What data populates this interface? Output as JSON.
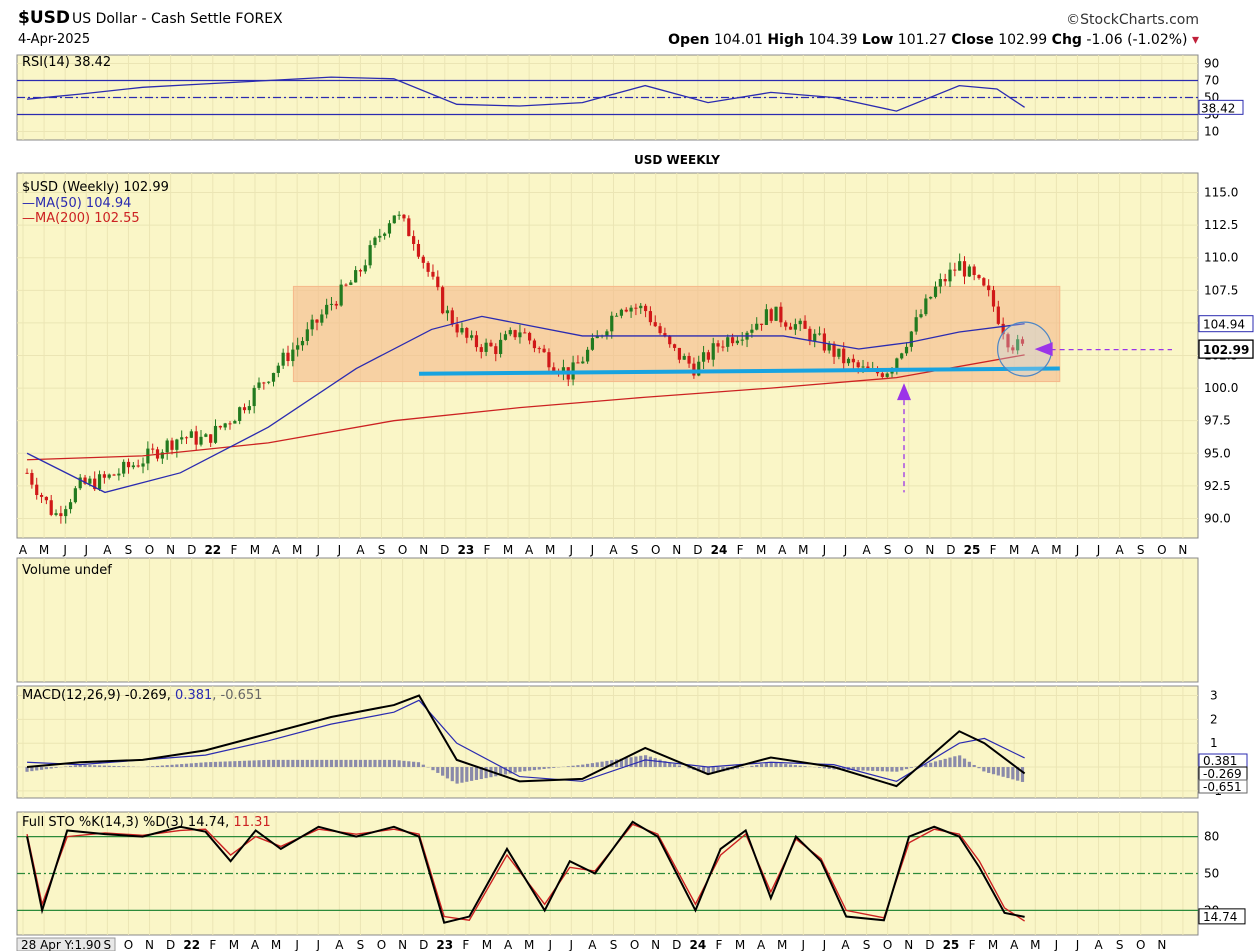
{
  "header": {
    "symbol": "$USD",
    "description": "US Dollar - Cash Settle FOREX",
    "date": "4-Apr-2025",
    "brand": "©StockCharts.com",
    "open_label": "Open",
    "open": "104.01",
    "high_label": "High",
    "high": "104.39",
    "low_label": "Low",
    "low": "101.27",
    "close_label": "Close",
    "close": "102.99",
    "chg_label": "Chg",
    "chg": "-1.06 (-1.02%)",
    "chg_arrow": "▾"
  },
  "colors": {
    "plot_bg": "#faf6c7",
    "grid": "#ebe5b4",
    "border": "#888888",
    "range_box": "#f5b98a",
    "support_line": "#18a3e0",
    "annotation": "#9b34e8",
    "up": "#227a1f",
    "down": "#d01818",
    "ma50": "#2b2bb0",
    "ma200": "#cc2222",
    "hist": "#8a8aaa"
  },
  "annotation": {
    "text": "USD WEEKLY"
  },
  "chart_data": [
    {
      "type": "line",
      "panel": "RSI",
      "legend": "RSI(14) 38.42",
      "ylim": [
        0,
        100
      ],
      "ticks": [
        "90",
        "70",
        "50",
        "30",
        "10"
      ],
      "levels": [
        70,
        50,
        30
      ],
      "last_value_label": "38.42",
      "x": [
        2021.29,
        2021.5,
        2021.75,
        2022.0,
        2022.25,
        2022.5,
        2022.75,
        2023.0,
        2023.25,
        2023.5,
        2023.75,
        2024.0,
        2024.25,
        2024.5,
        2024.75,
        2025.0,
        2025.15,
        2025.26
      ],
      "values": [
        48,
        54,
        62,
        66,
        70,
        74,
        72,
        42,
        40,
        44,
        64,
        44,
        56,
        50,
        34,
        64,
        60,
        38.42
      ]
    },
    {
      "type": "candlestick",
      "panel": "Price",
      "title": "USD WEEKLY",
      "legend": [
        "$USD (Weekly) 102.99",
        "MA(50) 104.94",
        "MA(200) 102.55"
      ],
      "ylim": [
        88.5,
        116.5
      ],
      "yticks": [
        "115.0",
        "112.5",
        "110.0",
        "107.5",
        "105.0",
        "102.5",
        "100.0",
        "97.5",
        "95.0",
        "92.5",
        "90.0"
      ],
      "last_value_labels": [
        "104.94",
        "102.99"
      ],
      "close": {
        "x": [
          2021.29,
          2021.4,
          2021.5,
          2021.6,
          2021.75,
          2021.9,
          2022.0,
          2022.12,
          2022.25,
          2022.4,
          2022.5,
          2022.6,
          2022.7,
          2022.75,
          2022.83,
          2022.95,
          2023.05,
          2023.15,
          2023.25,
          2023.35,
          2023.45,
          2023.55,
          2023.65,
          2023.75,
          2023.85,
          2023.95,
          2024.05,
          2024.15,
          2024.25,
          2024.35,
          2024.45,
          2024.55,
          2024.65,
          2024.72,
          2024.8,
          2024.9,
          2025.0,
          2025.05,
          2025.12,
          2025.2,
          2025.26
        ],
        "values": [
          93.5,
          90.2,
          92.5,
          93.0,
          94.5,
          96.3,
          96.0,
          98.0,
          101.0,
          104.0,
          106.5,
          108.5,
          112.0,
          113.5,
          111.5,
          106.0,
          103.5,
          103.0,
          104.5,
          102.5,
          101.0,
          103.5,
          106.5,
          106.0,
          103.0,
          101.5,
          103.5,
          104.5,
          105.8,
          104.8,
          103.5,
          102.0,
          101.0,
          101.5,
          104.0,
          107.5,
          109.5,
          108.5,
          107.0,
          103.5,
          102.99
        ]
      },
      "ma50": {
        "x": [
          2021.29,
          2021.6,
          2021.9,
          2022.25,
          2022.6,
          2022.9,
          2023.1,
          2023.5,
          2023.9,
          2024.3,
          2024.6,
          2024.8,
          2025.0,
          2025.26
        ],
        "values": [
          95.0,
          92.0,
          93.5,
          97.0,
          101.5,
          104.5,
          105.5,
          104.0,
          104.0,
          104.0,
          103.0,
          103.5,
          104.3,
          104.94
        ]
      },
      "ma200": {
        "x": [
          2021.29,
          2021.75,
          2022.25,
          2022.75,
          2023.25,
          2023.75,
          2024.25,
          2024.75,
          2025.26
        ],
        "values": [
          94.5,
          94.8,
          95.8,
          97.5,
          98.5,
          99.3,
          100.0,
          100.8,
          102.55
        ]
      },
      "range_box": {
        "y0": 100.5,
        "y1": 107.8,
        "x0": 2022.35,
        "x1": 2025.4
      },
      "support_line": {
        "y0": 101.1,
        "y1": 101.5,
        "x0": 2022.85,
        "x1": 2025.4
      }
    },
    {
      "type": "bar",
      "panel": "Volume",
      "legend": "Volume undef"
    },
    {
      "type": "line",
      "panel": "MACD",
      "legend_parts": [
        "MACD(12,26,9) -0.269, ",
        "0.381",
        ", -0.651"
      ],
      "ticks": [
        "3",
        "2",
        "1",
        "0",
        "-1"
      ],
      "ylim": [
        -1.3,
        3.4
      ],
      "last_value_labels": [
        "0.381",
        "-0.269",
        "-0.651"
      ],
      "x": [
        2021.29,
        2021.5,
        2021.75,
        2022.0,
        2022.25,
        2022.5,
        2022.75,
        2022.85,
        2023.0,
        2023.25,
        2023.5,
        2023.75,
        2024.0,
        2024.25,
        2024.5,
        2024.75,
        2025.0,
        2025.1,
        2025.26
      ],
      "macd": [
        0.0,
        0.2,
        0.3,
        0.7,
        1.4,
        2.1,
        2.6,
        3.0,
        0.3,
        -0.6,
        -0.5,
        0.8,
        -0.3,
        0.4,
        0.0,
        -0.8,
        1.5,
        1.0,
        -0.269
      ],
      "signal": [
        0.2,
        0.1,
        0.3,
        0.5,
        1.1,
        1.8,
        2.3,
        2.8,
        1.0,
        -0.4,
        -0.6,
        0.3,
        0.0,
        0.2,
        0.1,
        -0.6,
        1.0,
        1.2,
        0.381
      ]
    },
    {
      "type": "line",
      "panel": "STO",
      "legend_parts": [
        "Full STO %K(14,3) %D(3) 14.74, ",
        "11.31"
      ],
      "ylim": [
        0,
        100
      ],
      "ticks": [
        "80",
        "50",
        "20"
      ],
      "levels": [
        80,
        50,
        20
      ],
      "last_value_label": "14.74",
      "x": [
        2021.29,
        2021.35,
        2021.45,
        2021.6,
        2021.75,
        2021.9,
        2022.0,
        2022.1,
        2022.2,
        2022.3,
        2022.45,
        2022.6,
        2022.75,
        2022.85,
        2022.95,
        2023.05,
        2023.2,
        2023.35,
        2023.45,
        2023.55,
        2023.7,
        2023.8,
        2023.95,
        2024.05,
        2024.15,
        2024.25,
        2024.35,
        2024.45,
        2024.55,
        2024.7,
        2024.8,
        2024.9,
        2025.0,
        2025.08,
        2025.18,
        2025.26
      ],
      "k": [
        80,
        20,
        85,
        82,
        80,
        88,
        84,
        60,
        85,
        70,
        88,
        80,
        88,
        80,
        10,
        15,
        70,
        20,
        60,
        50,
        92,
        80,
        20,
        70,
        85,
        30,
        80,
        60,
        15,
        12,
        80,
        88,
        80,
        55,
        18,
        14.74
      ],
      "d": [
        82,
        25,
        80,
        83,
        81,
        85,
        86,
        65,
        80,
        72,
        86,
        82,
        86,
        82,
        15,
        12,
        65,
        25,
        55,
        52,
        90,
        82,
        25,
        65,
        82,
        35,
        78,
        62,
        20,
        14,
        75,
        86,
        82,
        60,
        22,
        11.31
      ]
    }
  ],
  "x_axis": {
    "main": [
      "A",
      "M",
      "J",
      "J",
      "A",
      "S",
      "O",
      "N",
      "D",
      "22",
      "F",
      "M",
      "A",
      "M",
      "J",
      "J",
      "A",
      "S",
      "O",
      "N",
      "D",
      "23",
      "F",
      "M",
      "A",
      "M",
      "J",
      "J",
      "A",
      "S",
      "O",
      "N",
      "D",
      "24",
      "F",
      "M",
      "A",
      "M",
      "J",
      "J",
      "A",
      "S",
      "O",
      "N",
      "D",
      "25",
      "F",
      "M",
      "A",
      "M",
      "J",
      "J",
      "A",
      "S",
      "O",
      "N"
    ],
    "bottom_box": "28 Apr Y:1.90",
    "bottom": [
      "S",
      "O",
      "N",
      "D",
      "22",
      "F",
      "M",
      "A",
      "M",
      "J",
      "J",
      "A",
      "S",
      "O",
      "N",
      "D",
      "23",
      "F",
      "M",
      "A",
      "M",
      "J",
      "J",
      "A",
      "S",
      "O",
      "N",
      "D",
      "24",
      "F",
      "M",
      "A",
      "M",
      "J",
      "J",
      "A",
      "S",
      "O",
      "N",
      "D",
      "25",
      "F",
      "M",
      "A",
      "M",
      "J",
      "J",
      "A",
      "S",
      "O",
      "N"
    ]
  }
}
